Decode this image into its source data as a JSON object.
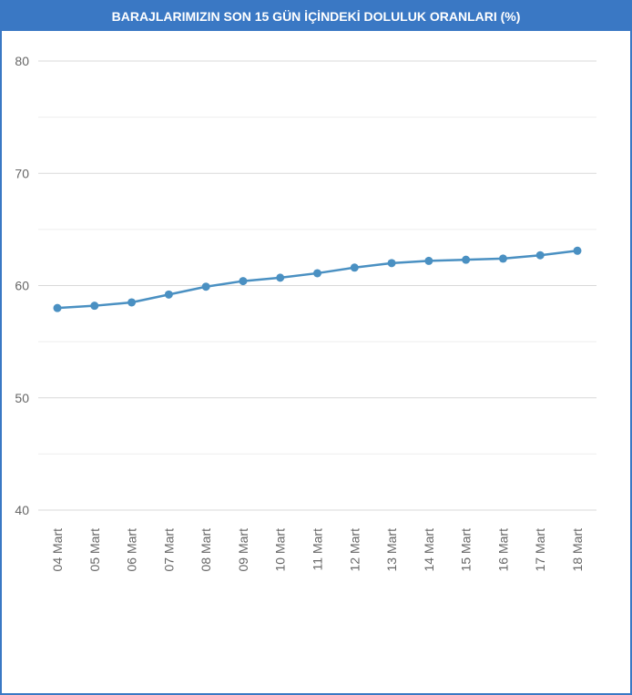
{
  "chart_data": {
    "type": "line",
    "title": "BARAJLARIMIZIN SON 15 GÜN İÇİNDEKİ DOLULUK ORANLARI (%)",
    "xlabel": "",
    "ylabel": "",
    "categories": [
      "04 Mart",
      "05 Mart",
      "06 Mart",
      "07 Mart",
      "08 Mart",
      "09 Mart",
      "10 Mart",
      "11 Mart",
      "12 Mart",
      "13 Mart",
      "14 Mart",
      "15 Mart",
      "16 Mart",
      "17 Mart",
      "18 Mart"
    ],
    "series": [
      {
        "values": [
          58.0,
          58.2,
          58.5,
          59.2,
          59.9,
          60.4,
          60.7,
          61.1,
          61.6,
          62.0,
          62.2,
          62.3,
          62.4,
          62.7,
          63.1
        ]
      }
    ],
    "ylim": [
      40,
      80
    ],
    "yticks": [
      "40",
      "50",
      "60",
      "70",
      "80"
    ],
    "grid": true,
    "legend": "none",
    "colors": {
      "line": "#4a90c2",
      "grid": "#e0e0e0",
      "frame": "#3a78c4",
      "header": "#3a78c4"
    }
  }
}
